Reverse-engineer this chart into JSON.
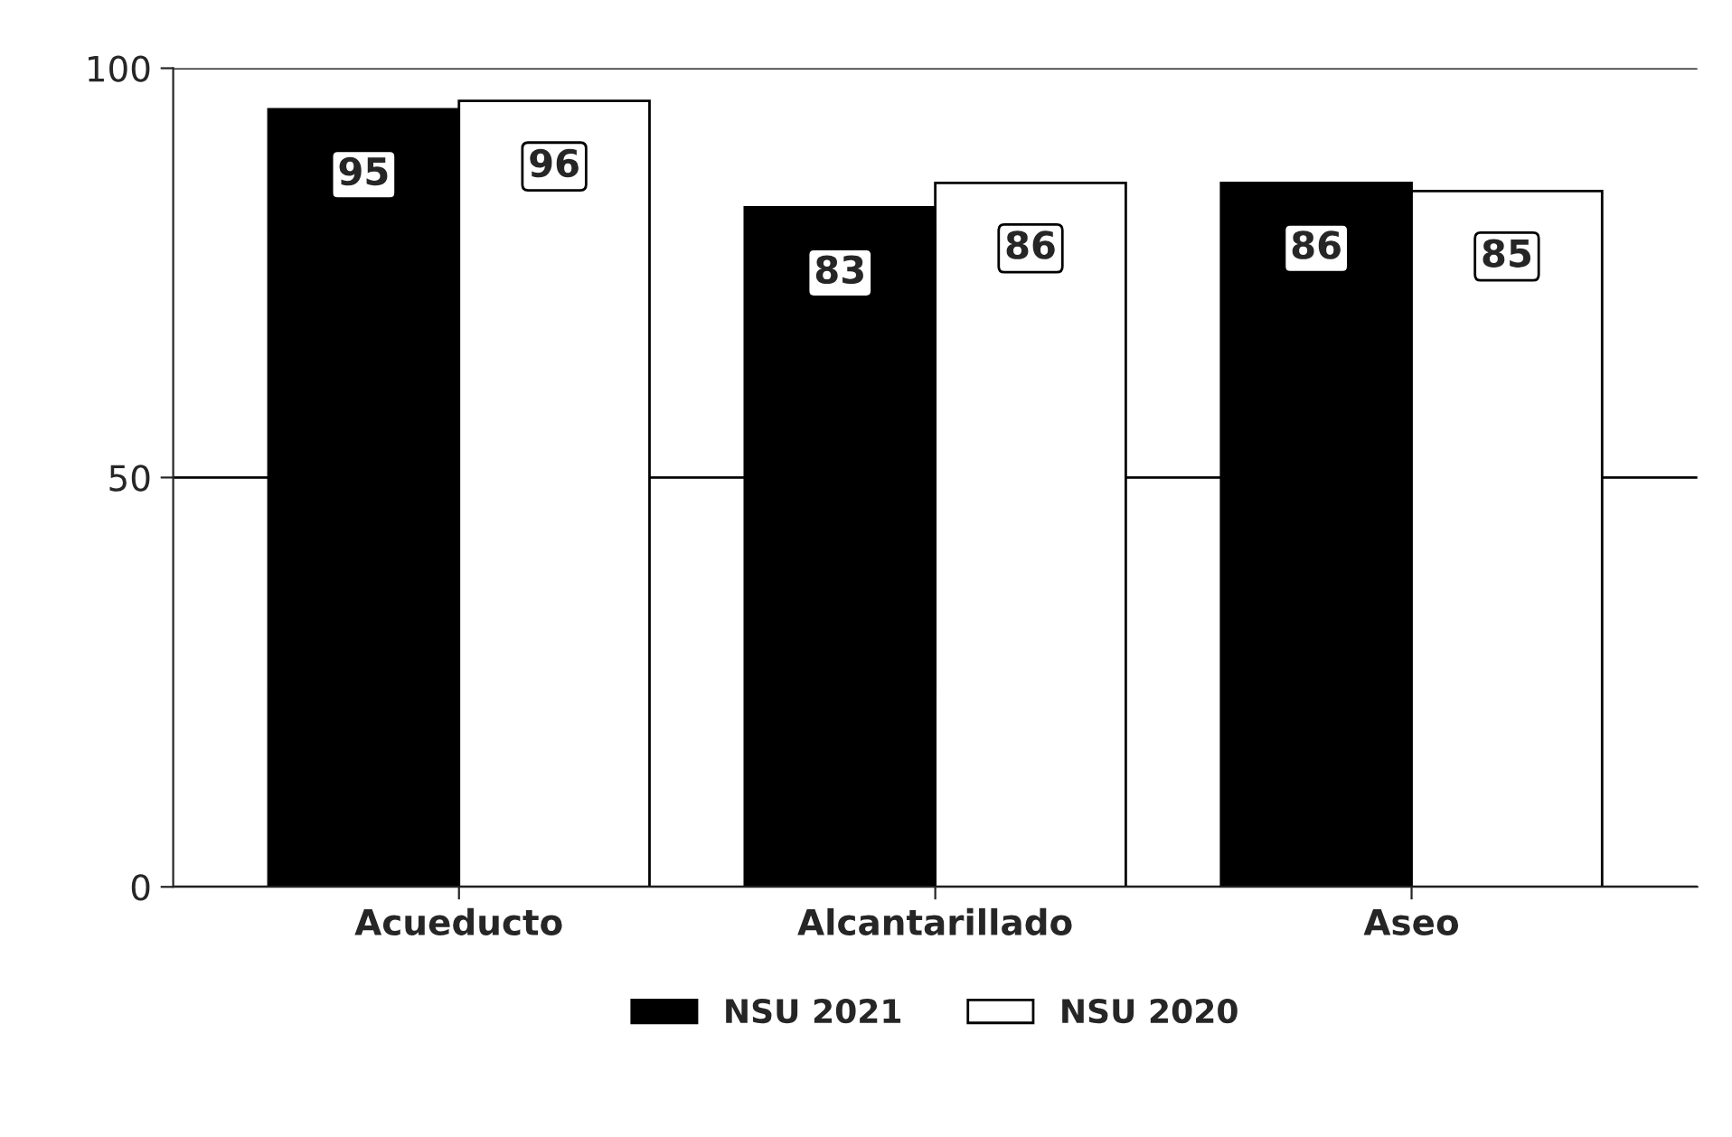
{
  "chart_data": {
    "type": "bar",
    "categories": [
      "Acueducto",
      "Alcantarillado",
      "Aseo"
    ],
    "series": [
      {
        "name": "NSU 2021",
        "color": "#000000",
        "values": [
          95,
          83,
          86
        ]
      },
      {
        "name": "NSU 2020",
        "color": "#ffffff",
        "values": [
          96,
          86,
          85
        ]
      }
    ],
    "ylim": [
      0,
      100
    ],
    "yticks": [
      0,
      50,
      100
    ],
    "grid": "y",
    "legend": "bottom",
    "data_labels": true
  }
}
